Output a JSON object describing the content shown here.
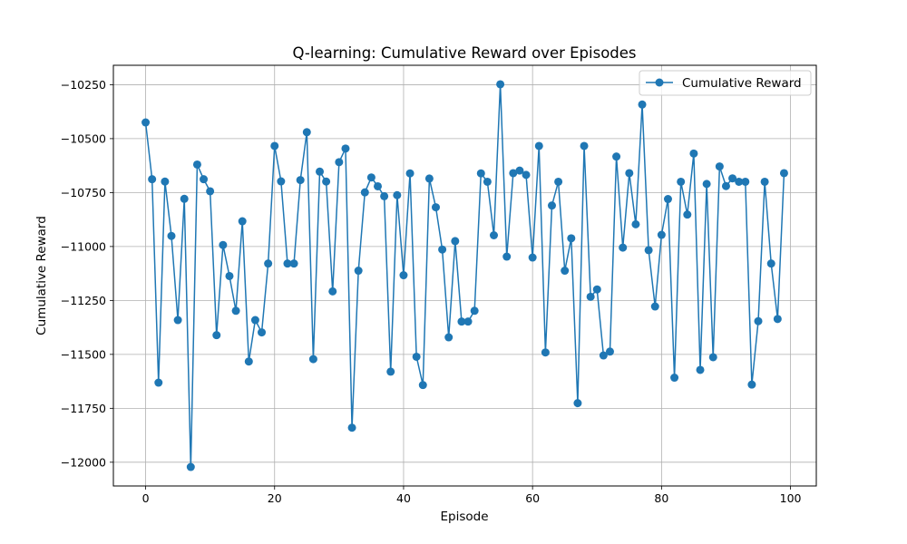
{
  "chart_data": {
    "type": "line",
    "title": "Q-learning: Cumulative Reward over Episodes",
    "xlabel": "Episode",
    "ylabel": "Cumulative Reward",
    "xlim": [
      -5,
      104
    ],
    "ylim": [
      -12110,
      -10160
    ],
    "xticks": [
      0,
      20,
      40,
      60,
      80,
      100
    ],
    "xtick_labels": [
      "0",
      "20",
      "40",
      "60",
      "80",
      "100"
    ],
    "yticks": [
      -12000,
      -11750,
      -11500,
      -11250,
      -11000,
      -10750,
      -10500,
      -10250
    ],
    "ytick_labels": [
      "−12000",
      "−11750",
      "−11500",
      "−11250",
      "−11000",
      "−10750",
      "−10500",
      "−10250"
    ],
    "grid": true,
    "legend_position": "top-right",
    "color": "#1f77b4",
    "series": [
      {
        "name": "Cumulative Reward",
        "x": [
          0,
          1,
          2,
          3,
          4,
          5,
          6,
          7,
          8,
          9,
          10,
          11,
          12,
          13,
          14,
          15,
          16,
          17,
          18,
          19,
          20,
          21,
          22,
          23,
          24,
          25,
          26,
          27,
          28,
          29,
          30,
          31,
          32,
          33,
          34,
          35,
          36,
          37,
          38,
          39,
          40,
          41,
          42,
          43,
          44,
          45,
          46,
          47,
          48,
          49,
          50,
          51,
          52,
          53,
          54,
          55,
          56,
          57,
          58,
          59,
          60,
          61,
          62,
          63,
          64,
          65,
          66,
          67,
          68,
          69,
          70,
          71,
          72,
          73,
          74,
          75,
          76,
          77,
          78,
          79,
          80,
          81,
          82,
          83,
          84,
          85,
          86,
          87,
          88,
          89,
          90,
          91,
          92,
          93,
          94,
          95,
          96,
          97,
          98,
          99
        ],
        "values": [
          -10425,
          -10688,
          -11631,
          -10699,
          -10951,
          -11341,
          -10779,
          -12022,
          -10620,
          -10688,
          -10744,
          -11411,
          -10993,
          -11137,
          -11298,
          -10883,
          -11533,
          -11341,
          -11398,
          -11079,
          -10534,
          -10698,
          -11079,
          -11079,
          -10692,
          -10470,
          -11522,
          -10653,
          -10699,
          -11208,
          -10609,
          -10546,
          -11840,
          -11112,
          -10749,
          -10680,
          -10721,
          -10767,
          -11580,
          -10762,
          -11133,
          -10661,
          -11511,
          -11642,
          -10685,
          -10818,
          -11014,
          -11421,
          -10975,
          -11348,
          -11348,
          -11298,
          -10661,
          -10700,
          -10948,
          -10248,
          -11047,
          -10660,
          -10648,
          -10668,
          -11051,
          -10534,
          -11491,
          -10810,
          -10700,
          -11112,
          -10962,
          -11726,
          -10534,
          -11233,
          -11199,
          -11505,
          -11487,
          -10583,
          -11005,
          -10660,
          -10897,
          -10342,
          -11017,
          -11278,
          -10946,
          -10780,
          -11608,
          -10700,
          -10852,
          -10569,
          -11572,
          -10710,
          -11513,
          -10629,
          -10720,
          -10684,
          -10700,
          -10700,
          -11640,
          -11346,
          -10700,
          -11079,
          -11336,
          -10660
        ]
      }
    ]
  }
}
